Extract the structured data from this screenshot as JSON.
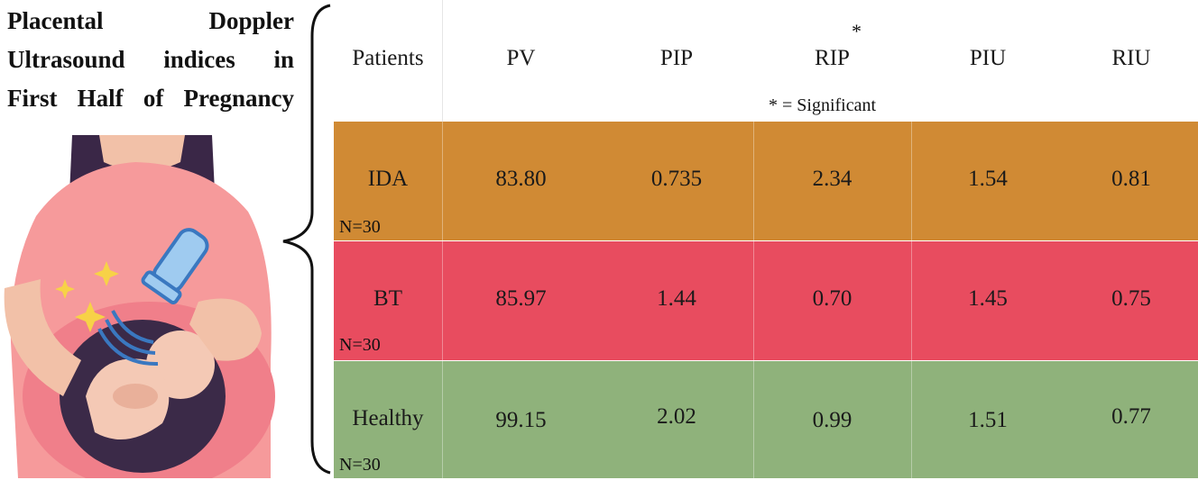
{
  "title_lines": [
    "Placental Doppler",
    "Ultrasound indices in",
    "First Half of Pregnancy"
  ],
  "header": {
    "patients": "Patients",
    "columns": [
      "PV",
      "PIP",
      "RIP",
      "PIU",
      "RIU"
    ],
    "star": "*",
    "note": "* = Significant"
  },
  "rows": [
    {
      "label": "IDA",
      "n": "N=30",
      "values": [
        "83.80",
        "0.735",
        "2.34",
        "1.54",
        "0.81"
      ],
      "color": "#d08a34"
    },
    {
      "label": "BT",
      "n": "N=30",
      "values": [
        "85.97",
        "1.44",
        "0.70",
        "1.45",
        "0.75"
      ],
      "color": "#e84c5f"
    },
    {
      "label": "Healthy",
      "n": "N=30",
      "values": [
        "99.15",
        "2.02",
        "0.99",
        "1.51",
        "0.77"
      ],
      "color": "#8fb27b"
    }
  ]
}
